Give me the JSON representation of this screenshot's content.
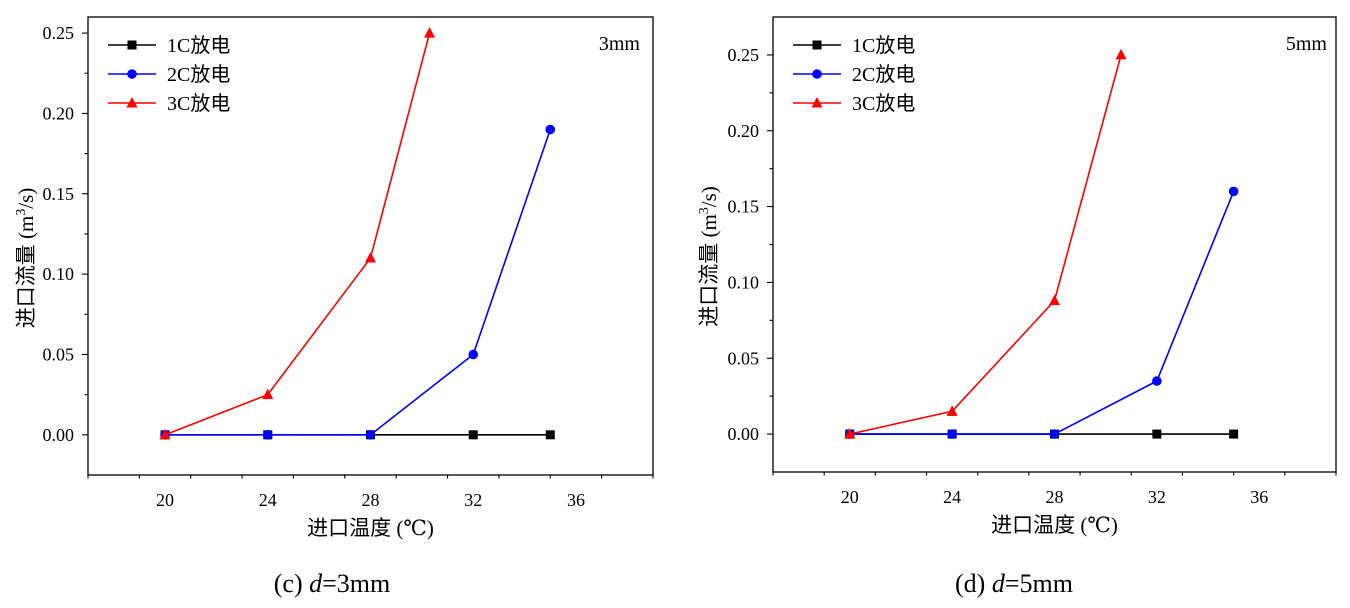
{
  "chart_data": [
    {
      "type": "line",
      "caption": {
        "prefix": "(c) ",
        "var": "d",
        "rest": "=3mm"
      },
      "annotation": "3mm",
      "xlabel": "进口温度 (℃)",
      "ylabel": {
        "main": "进口流量 (m",
        "sup": "3",
        "end": "/s)"
      },
      "xlim": [
        17,
        39
      ],
      "ylim": [
        -0.025,
        0.26
      ],
      "xticks": [
        20,
        24,
        28,
        32,
        36
      ],
      "yticks": [
        "0.00",
        "0.05",
        "0.10",
        "0.15",
        "0.20",
        "0.25"
      ],
      "legend_position": "top-left",
      "series": [
        {
          "name": "1C放电",
          "color": "#000000",
          "marker": "square",
          "x": [
            20,
            24,
            28,
            32,
            35
          ],
          "y": [
            0,
            0,
            0,
            0,
            0
          ]
        },
        {
          "name": "2C放电",
          "color": "#0000ff",
          "marker": "circle",
          "x": [
            20,
            24,
            28,
            32,
            35
          ],
          "y": [
            0,
            0,
            0,
            0.05,
            0.19
          ]
        },
        {
          "name": "3C放电",
          "color": "#ff0000",
          "marker": "triangle",
          "x": [
            20,
            24,
            28,
            30.3
          ],
          "y": [
            0,
            0.025,
            0.11,
            0.25
          ]
        }
      ]
    },
    {
      "type": "line",
      "caption": {
        "prefix": "(d) ",
        "var": "d",
        "rest": "=5mm"
      },
      "annotation": "5mm",
      "xlabel": "进口温度 (℃)",
      "ylabel": {
        "main": "进口流量 (m",
        "sup": "3",
        "end": "/s)"
      },
      "xlim": [
        17,
        39
      ],
      "ylim": [
        -0.025,
        0.275
      ],
      "xticks": [
        20,
        24,
        28,
        32,
        36
      ],
      "yticks": [
        "0.00",
        "0.05",
        "0.10",
        "0.15",
        "0.20",
        "0.25"
      ],
      "legend_position": "top-left",
      "series": [
        {
          "name": "1C放电",
          "color": "#000000",
          "marker": "square",
          "x": [
            20,
            24,
            28,
            32,
            35
          ],
          "y": [
            0,
            0,
            0,
            0,
            0
          ]
        },
        {
          "name": "2C放电",
          "color": "#0000ff",
          "marker": "circle",
          "x": [
            20,
            24,
            28,
            32,
            35
          ],
          "y": [
            0,
            0,
            0,
            0.035,
            0.16
          ]
        },
        {
          "name": "3C放电",
          "color": "#ff0000",
          "marker": "triangle",
          "x": [
            20,
            24,
            28,
            30.6
          ],
          "y": [
            0,
            0.015,
            0.088,
            0.25
          ]
        }
      ]
    }
  ]
}
